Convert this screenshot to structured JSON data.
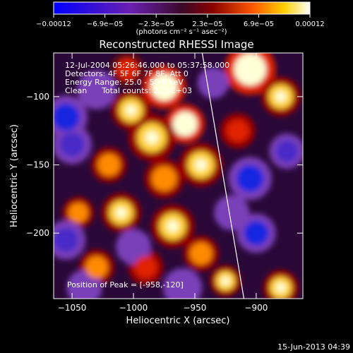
{
  "chart_data": {
    "type": "heatmap",
    "title": "Reconstructed RHESSI Image",
    "xlabel": "Heliocentric X (arcsec)",
    "ylabel": "Heliocentric Y (arcsec)",
    "xlim": [
      -1065,
      -862
    ],
    "ylim": [
      -248,
      -68
    ],
    "x_ticks": [
      -1050,
      -1000,
      -950,
      -900
    ],
    "x_tick_labels": [
      "−1050",
      "−1000",
      "−950",
      "−900"
    ],
    "y_ticks": [
      -100,
      -150,
      -200
    ],
    "y_tick_labels": [
      "−100",
      "−150",
      "−200"
    ],
    "colorbar": {
      "range": [
        -0.00012,
        0.00012
      ],
      "tick_labels": [
        "−0.00012",
        "−6.9e−05",
        "−2.3e−05",
        "2.3e−05",
        "6.9e−05",
        "0.00012"
      ],
      "units_label": "(photons cm⁻² s⁻¹ asec⁻²)"
    },
    "info_lines": [
      "12-Jul-2004 05:26:46.000 to 05:37:58.000",
      "Detectors: 4F 5F 6F 7F 8F, Att 0",
      "Energy Range: 25.0 - 50.0 keV",
      "Clean      Total counts: 2.73E+03"
    ],
    "peak_label": "Position of Peak = [-958,-120]",
    "peak": {
      "x": -958,
      "y": -120
    },
    "limb_line": {
      "from": [
        -944,
        -68
      ],
      "to": [
        -910,
        -248
      ]
    },
    "blobs": [
      {
        "x": -975,
        "y": -93,
        "v": 1.0,
        "r": 11
      },
      {
        "x": -1002,
        "y": -110,
        "v": 0.9,
        "r": 10
      },
      {
        "x": -958,
        "y": -120,
        "v": 1.0,
        "r": 10
      },
      {
        "x": -985,
        "y": -130,
        "v": 0.85,
        "r": 12
      },
      {
        "x": -945,
        "y": -150,
        "v": 0.9,
        "r": 11
      },
      {
        "x": -1020,
        "y": -150,
        "v": 0.8,
        "r": 9
      },
      {
        "x": -975,
        "y": -160,
        "v": 0.7,
        "r": 10
      },
      {
        "x": -1045,
        "y": -185,
        "v": 0.7,
        "r": 8
      },
      {
        "x": -1010,
        "y": -185,
        "v": 0.85,
        "r": 10
      },
      {
        "x": -968,
        "y": -195,
        "v": 0.9,
        "r": 11
      },
      {
        "x": -945,
        "y": -215,
        "v": 0.75,
        "r": 9
      },
      {
        "x": -1030,
        "y": -225,
        "v": 0.7,
        "r": 9
      },
      {
        "x": -990,
        "y": -225,
        "v": 0.6,
        "r": 9
      },
      {
        "x": -925,
        "y": -235,
        "v": 0.9,
        "r": 8
      },
      {
        "x": -905,
        "y": -80,
        "v": 1.0,
        "r": 13
      },
      {
        "x": -880,
        "y": -100,
        "v": 0.9,
        "r": 10
      },
      {
        "x": -915,
        "y": -125,
        "v": 0.6,
        "r": 9
      },
      {
        "x": -880,
        "y": -240,
        "v": 0.85,
        "r": 9
      },
      {
        "x": -1005,
        "y": -80,
        "v": 0.55,
        "r": 9
      },
      {
        "x": -1055,
        "y": -115,
        "v": -0.7,
        "r": 11
      },
      {
        "x": -1050,
        "y": -135,
        "v": -0.6,
        "r": 10
      },
      {
        "x": -1030,
        "y": -95,
        "v": -0.4,
        "r": 10
      },
      {
        "x": -1055,
        "y": -205,
        "v": -0.5,
        "r": 10
      },
      {
        "x": -905,
        "y": -160,
        "v": -0.8,
        "r": 11
      },
      {
        "x": -900,
        "y": -200,
        "v": -0.7,
        "r": 10
      },
      {
        "x": -920,
        "y": -185,
        "v": -0.4,
        "r": 9
      },
      {
        "x": -1000,
        "y": -210,
        "v": -0.4,
        "r": 9
      },
      {
        "x": -960,
        "y": -240,
        "v": -0.3,
        "r": 10
      },
      {
        "x": -1040,
        "y": -240,
        "v": -0.3,
        "r": 9
      },
      {
        "x": -875,
        "y": -140,
        "v": -0.5,
        "r": 9
      },
      {
        "x": -935,
        "y": -90,
        "v": -0.3,
        "r": 8
      }
    ]
  },
  "footer": {
    "timestamp": "15-Jun-2013 04:39"
  }
}
